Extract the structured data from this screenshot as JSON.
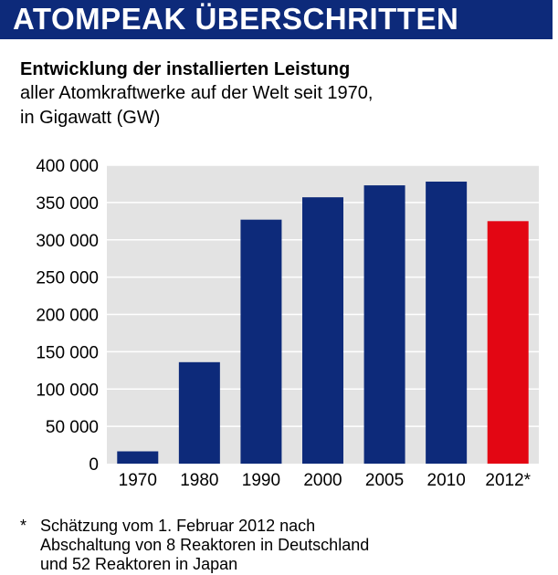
{
  "banner": {
    "title": "ATOMPEAK ÜBERSCHRITTEN"
  },
  "subtitle": {
    "bold": "Entwicklung der installierten Leistung",
    "line1": "aller Atomkraftwerke auf der Welt seit 1970,",
    "line2": "in Gigawatt (GW)"
  },
  "chart_data": {
    "type": "bar",
    "categories": [
      "1970",
      "1980",
      "1990",
      "2000",
      "2005",
      "2010",
      "2012*"
    ],
    "values": [
      16500,
      136000,
      327000,
      357000,
      373000,
      378000,
      325000
    ],
    "yticks": [
      0,
      50000,
      100000,
      150000,
      200000,
      250000,
      300000,
      350000,
      400000
    ],
    "ytick_labels": [
      "0",
      "50 000",
      "100 000",
      "150 000",
      "200 000",
      "250 000",
      "300 000",
      "350 000",
      "400 000"
    ],
    "ylim": [
      0,
      400000
    ],
    "grid": true,
    "colors": {
      "bar": "#0d2a7a",
      "highlight": "#e30613",
      "plot_bg": "#e3e3e3",
      "grid": "#ffffff"
    },
    "highlight_index": 6
  },
  "footnote": {
    "star": "*",
    "line1": "Schätzung vom 1. Februar 2012 nach",
    "line2": "Abschaltung von 8 Reaktoren in Deutschland",
    "line3": "und 52 Reaktoren in Japan"
  }
}
